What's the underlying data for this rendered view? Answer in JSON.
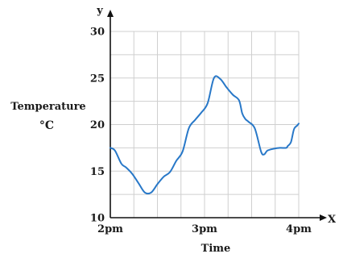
{
  "chart_data": {
    "type": "line",
    "title": "",
    "xlabel": "Time",
    "ylabel": "Temperature",
    "ylabel_unit": "°C",
    "x_axis_letter": "X",
    "y_axis_letter": "y",
    "x_ticks": [
      {
        "label": "2pm",
        "value": 0
      },
      {
        "label": "3pm",
        "value": 60
      },
      {
        "label": "4pm",
        "value": 120
      }
    ],
    "xlim_minutes": [
      0,
      120
    ],
    "y_ticks": [
      "10",
      "15",
      "20",
      "25",
      "30"
    ],
    "ylim": [
      10,
      30
    ],
    "grid": true,
    "color": "#2878c8",
    "series": [
      {
        "x_minutes": [
          0,
          3,
          7,
          10,
          14,
          18,
          22,
          26,
          30,
          34,
          38,
          42,
          46,
          50,
          54,
          58,
          62,
          66,
          70,
          74,
          78,
          82,
          84,
          86,
          88,
          92,
          96,
          98,
          100,
          104,
          108,
          112,
          113,
          115,
          117,
          119,
          120
        ],
        "y": [
          17.5,
          17.2,
          15.8,
          15.4,
          14.7,
          13.7,
          12.7,
          12.7,
          13.6,
          14.4,
          14.9,
          16.1,
          17.1,
          19.6,
          20.5,
          21.3,
          22.3,
          25.0,
          24.9,
          24.0,
          23.2,
          22.6,
          21.2,
          20.6,
          20.3,
          19.6,
          17.1,
          16.8,
          17.2,
          17.4,
          17.5,
          17.5,
          17.7,
          18.1,
          19.5,
          19.9,
          20.1
        ]
      }
    ]
  }
}
